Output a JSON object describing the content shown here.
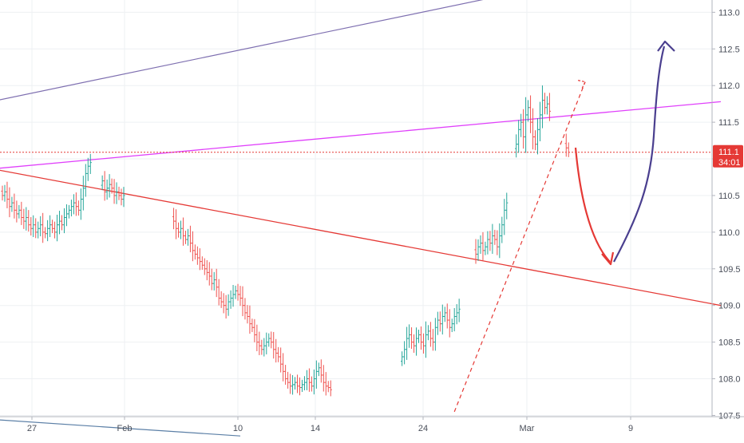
{
  "chart_data": {
    "type": "ohlc",
    "title": "",
    "xlabel": "",
    "ylabel": "",
    "ylim": [
      107.2,
      113.2
    ],
    "y_ticks": [
      "113.0",
      "112.5",
      "112.0",
      "111.5",
      "111.0",
      "110.5",
      "110.0",
      "109.5",
      "109.0",
      "108.5",
      "108.0",
      "107.5"
    ],
    "x_ticks": [
      "27",
      "Feb",
      "10",
      "14",
      "24",
      "Mar",
      "9"
    ],
    "current_price_label": "111.1",
    "countdown_label": "34:01",
    "current_price": 111.09,
    "grid": true,
    "colors": {
      "up": "#26a69a",
      "down": "#ef5350",
      "support_line": "#e53935",
      "magenta_line": "#e040fb",
      "channel_top": "#7e6fb0",
      "channel_bottom": "#5b7fa6",
      "forecast_up": "#4a3f8f",
      "forecast_down": "#e53935",
      "price_badge": "#e53935"
    },
    "series": [
      {
        "segment": "late-january",
        "closes": [
          110.5,
          110.55,
          110.45,
          110.35,
          110.4,
          110.3,
          110.25,
          110.3,
          110.2,
          110.15,
          110.2,
          110.1,
          110.05,
          110.1,
          110.0,
          110.05,
          110.1,
          110.0,
          109.98,
          110.05,
          110.1,
          110.05,
          110.0,
          110.1,
          110.15,
          110.1,
          110.2,
          110.25,
          110.3,
          110.35,
          110.4,
          110.35,
          110.3,
          110.45,
          110.6,
          110.8,
          110.9,
          110.95
        ]
      },
      {
        "segment": "early-february",
        "closes": [
          110.7,
          110.55,
          110.6,
          110.65,
          110.6,
          110.5,
          110.55,
          110.5,
          110.45,
          110.5
        ]
      },
      {
        "segment": "feb-decline",
        "closes": [
          110.15,
          110.05,
          110.0,
          110.05,
          109.95,
          109.9,
          109.95,
          109.85,
          109.75,
          109.7,
          109.65,
          109.6,
          109.55,
          109.5,
          109.45,
          109.4,
          109.3,
          109.35,
          109.25,
          109.1,
          109.05,
          109.0,
          108.95,
          109.05,
          109.1,
          109.15,
          109.2,
          109.15,
          109.1,
          109.0,
          108.9,
          108.85,
          108.75,
          108.7,
          108.6,
          108.5,
          108.45,
          108.4,
          108.45,
          108.5,
          108.55,
          108.5,
          108.4,
          108.35,
          108.3,
          108.2,
          108.1,
          108.0,
          107.95,
          107.9,
          107.92,
          107.95,
          107.9,
          107.88,
          107.92,
          107.95,
          108.0,
          107.95,
          107.9,
          108.0,
          108.1,
          108.15,
          108.05,
          107.95,
          107.9,
          107.88,
          107.85
        ]
      },
      {
        "segment": "late-feb-recovery",
        "closes": [
          108.3,
          108.4,
          108.55,
          108.6,
          108.5,
          108.45,
          108.55,
          108.6,
          108.5,
          108.45,
          108.6,
          108.65,
          108.55,
          108.5,
          108.7,
          108.8,
          108.75,
          108.85,
          108.9,
          108.8,
          108.7,
          108.75,
          108.85,
          108.9,
          108.95
        ]
      },
      {
        "segment": "end-february",
        "closes": [
          109.7,
          109.8,
          109.85,
          109.75,
          109.8,
          109.9,
          109.85,
          109.95,
          109.9,
          109.8,
          109.95,
          110.1,
          110.3,
          110.4
        ]
      },
      {
        "segment": "early-march",
        "closes": [
          111.2,
          111.4,
          111.5,
          111.3,
          111.6,
          111.7,
          111.5,
          111.3,
          111.2,
          111.4,
          111.6,
          111.8,
          111.7,
          111.75,
          111.65
        ]
      },
      {
        "segment": "latest",
        "closes": [
          111.15,
          111.09
        ]
      }
    ],
    "trendlines": [
      {
        "name": "",
        "kind": "descending-support",
        "from": {
          "bar": -2,
          "price": 110.85
        },
        "to": {
          "bar": 302,
          "price": 109.0
        }
      },
      {
        "name": "",
        "kind": "magenta-resistance",
        "from": {
          "bar": -2,
          "price": 110.87
        },
        "to": {
          "bar": 302,
          "price": 111.78
        }
      },
      {
        "name": "",
        "kind": "channel-top",
        "from": {
          "bar": -2,
          "price": 111.8
        },
        "to": {
          "bar": 206,
          "price": 113.2
        }
      },
      {
        "name": "",
        "kind": "channel-bottom",
        "from": {
          "bar": -2,
          "price": 107.44
        },
        "to": {
          "bar": 100,
          "price": 107.22
        }
      },
      {
        "name": "",
        "kind": "dashed-uptrend",
        "from": {
          "bar": 190,
          "price": 107.55
        },
        "to": {
          "bar": 245,
          "price": 112.05
        }
      }
    ]
  }
}
